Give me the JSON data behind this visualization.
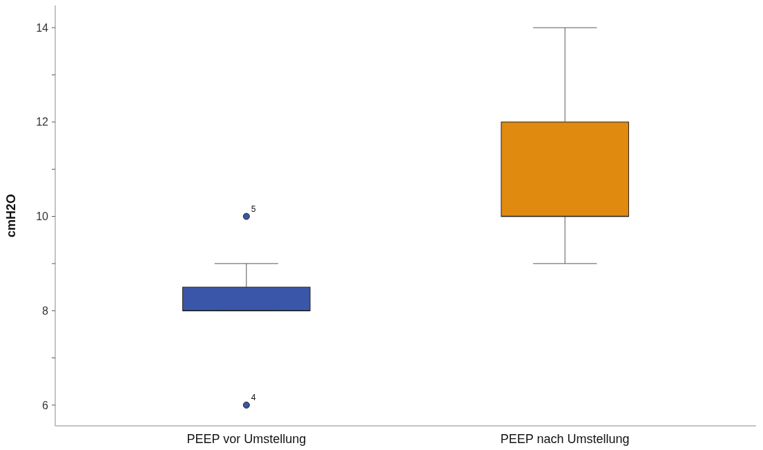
{
  "chart_data": {
    "type": "box",
    "ylabel": "cmH2O",
    "categories": [
      "PEEP vor Umstellung",
      "PEEP nach Umstellung"
    ],
    "boxes": [
      {
        "low": 8,
        "q1": 8,
        "median": 8,
        "q3": 8.5,
        "high": 9,
        "outliers": [
          10,
          6
        ]
      },
      {
        "low": 9,
        "q1": 10,
        "median": 10,
        "q3": 12,
        "high": 14
      }
    ],
    "colors": [
      "#3a56a8",
      "#e08a10"
    ],
    "ylim": [
      5.56,
      14.47
    ],
    "yticks": [
      6,
      {
        "value": 7,
        "label": null
      },
      8,
      {
        "value": 9,
        "label": null
      },
      10,
      {
        "value": 11,
        "label": null
      },
      12,
      {
        "value": 13,
        "label": null
      },
      14
    ],
    "annotations": [
      "5",
      "4"
    ],
    "grid": false
  }
}
